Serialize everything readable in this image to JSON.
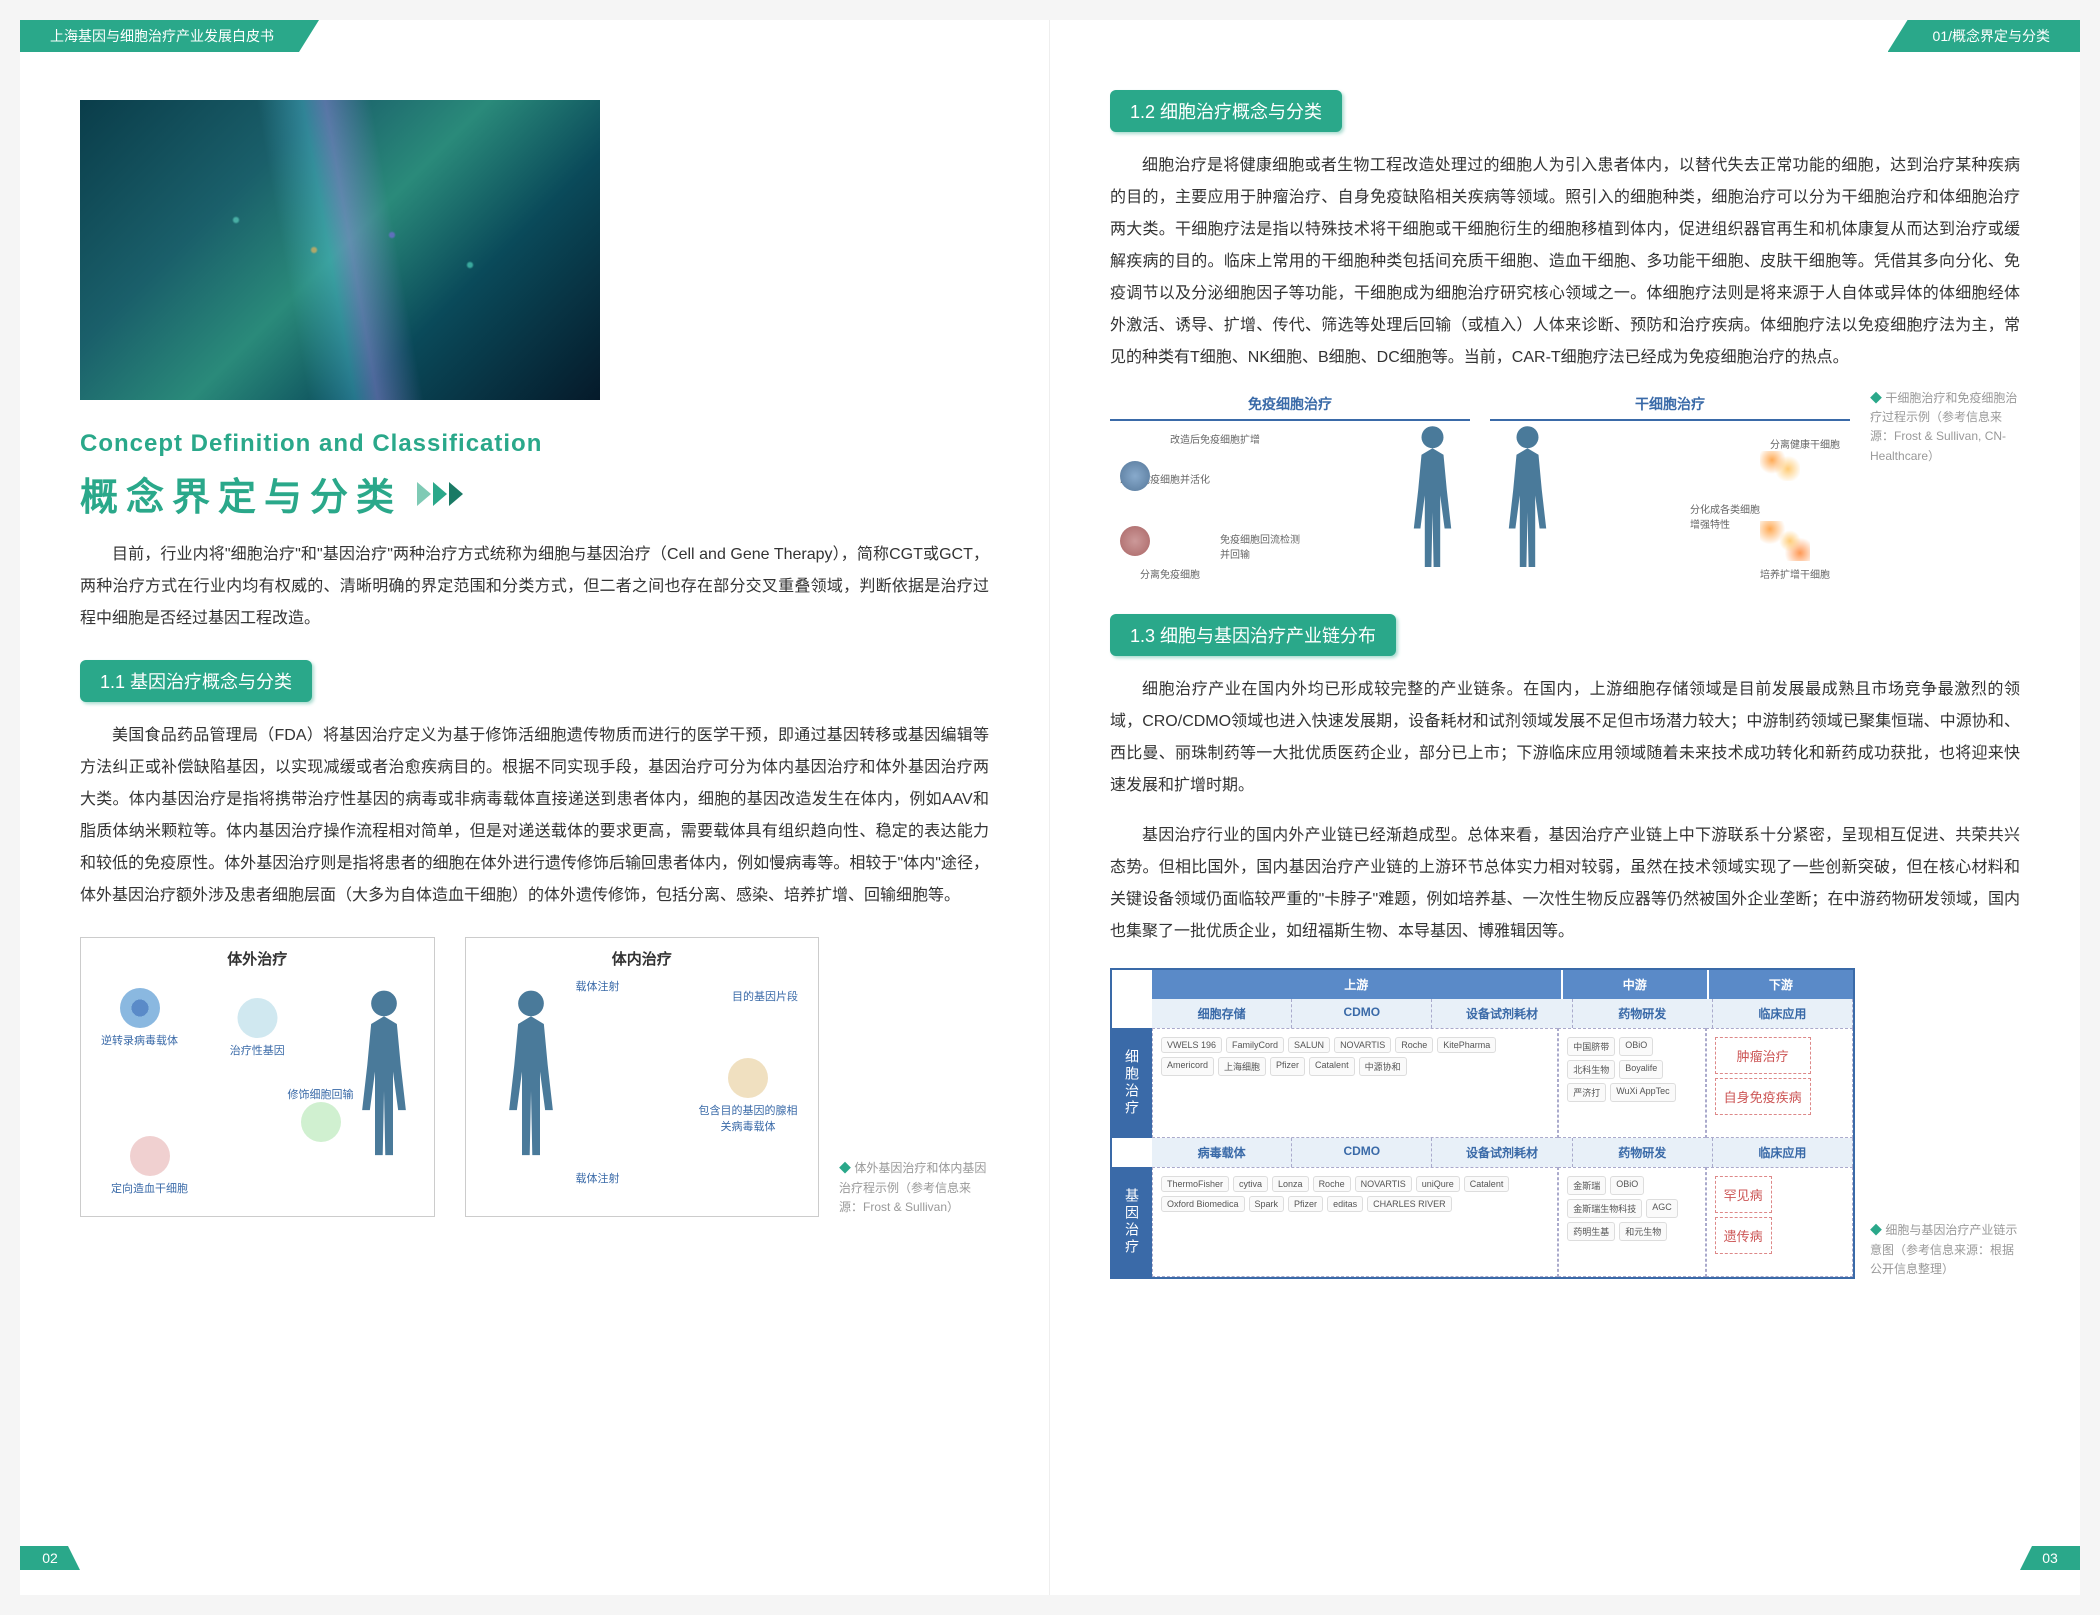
{
  "header": {
    "left_tab": "上海基因与细胞治疗产业发展白皮书",
    "right_tab": "01/概念界定与分类"
  },
  "left_page": {
    "subtitle_en": "Concept Definition and Classification",
    "title_cn": "概念界定与分类",
    "intro": "目前，行业内将\"细胞治疗\"和\"基因治疗\"两种治疗方式统称为细胞与基因治疗（Cell and Gene Therapy），简称CGT或GCT，两种治疗方式在行业内均有权威的、清晰明确的界定范围和分类方式，但二者之间也存在部分交叉重叠领域，判断依据是治疗过程中细胞是否经过基因工程改造。",
    "section_1_1": {
      "heading": "1.1  基因治疗概念与分类",
      "para": "美国食品药品管理局（FDA）将基因治疗定义为基于修饰活细胞遗传物质而进行的医学干预，即通过基因转移或基因编辑等方法纠正或补偿缺陷基因，以实现减缓或者治愈疾病目的。根据不同实现手段，基因治疗可分为体内基因治疗和体外基因治疗两大类。体内基因治疗是指将携带治疗性基因的病毒或非病毒载体直接递送到患者体内，细胞的基因改造发生在体内，例如AAV和脂质体纳米颗粒等。体内基因治疗操作流程相对简单，但是对递送载体的要求更高，需要载体具有组织趋向性、稳定的表达能力和较低的免疫原性。体外基因治疗则是指将患者的细胞在体外进行遗传修饰后输回患者体内，例如慢病毒等。相较于\"体内\"途径，体外基因治疗额外涉及患者细胞层面（大多为自体造血干细胞）的体外遗传修饰，包括分离、感染、培养扩增、回输细胞等。",
      "diagram_left_label": "体外治疗",
      "diagram_right_label": "体内治疗",
      "nodes": {
        "virus": "逆转录病毒载体",
        "gene": "治疗性基因",
        "target": "定向造血干细胞",
        "modify": "修饰细胞回输",
        "inject1": "载体注射",
        "inject2": "载体注射",
        "fragment": "目的基因片段",
        "adeno": "包含目的基因的腺相关病毒载体"
      },
      "caption": "体外基因治疗和体内基因治疗程示例（参考信息来源：Frost & Sullivan）"
    },
    "page_num": "02"
  },
  "right_page": {
    "section_1_2": {
      "heading": "1.2  细胞治疗概念与分类",
      "para": "细胞治疗是将健康细胞或者生物工程改造处理过的细胞人为引入患者体内，以替代失去正常功能的细胞，达到治疗某种疾病的目的，主要应用于肿瘤治疗、自身免疫缺陷相关疾病等领域。照引入的细胞种类，细胞治疗可以分为干细胞治疗和体细胞治疗两大类。干细胞疗法是指以特殊技术将干细胞或干细胞衍生的细胞移植到体内，促进组织器官再生和机体康复从而达到治疗或缓解疾病的目的。临床上常用的干细胞种类包括间充质干细胞、造血干细胞、多功能干细胞、皮肤干细胞等。凭借其多向分化、免疫调节以及分泌细胞因子等功能，干细胞成为细胞治疗研究核心领域之一。体细胞疗法则是将来源于人自体或异体的体细胞经体外激活、诱导、扩增、传代、筛选等处理后回输（或植入）人体来诊断、预防和治疗疾病。体细胞疗法以免疫细胞疗法为主，常见的种类有T细胞、NK细胞、B细胞、DC细胞等。当前，CAR-T细胞疗法已经成为免疫细胞治疗的热点。",
      "diagram_left_title": "免疫细胞治疗",
      "diagram_right_title": "干细胞治疗",
      "labels": {
        "modify_immune": "改造后免疫细胞扩增",
        "activate": "改造免疫细胞并活化",
        "reinfuse": "分离免疫细胞",
        "detect": "免疫细胞回流检测并回输",
        "separate": "分离健康干细胞",
        "culture": "分化成各类细胞增强特性",
        "expand": "培养扩增干细胞"
      },
      "caption": "干细胞治疗和免疫细胞治疗过程示例（参考信息来源：Frost & Sullivan, CN-Healthcare）"
    },
    "section_1_3": {
      "heading": "1.3  细胞与基因治疗产业链分布",
      "para1": "细胞治疗产业在国内外均已形成较完整的产业链条。在国内，上游细胞存储领域是目前发展最成熟且市场竞争最激烈的领域，CRO/CDMO领域也进入快速发展期，设备耗材和试剂领域发展不足但市场潜力较大；中游制药领域已聚集恒瑞、中源协和、西比曼、丽珠制药等一大批优质医药企业，部分已上市；下游临床应用领域随着未来技术成功转化和新药成功获批，也将迎来快速发展和扩增时期。",
      "para2": "基因治疗行业的国内外产业链已经渐趋成型。总体来看，基因治疗产业链上中下游联系十分紧密，呈现相互促进、共荣共兴态势。但相比国外，国内基因治疗产业链的上游环节总体实力相对较弱，虽然在技术领域实现了一些创新突破，但在核心材料和关键设备领域仍面临较严重的\"卡脖子\"难题，例如培养基、一次性生物反应器等仍然被国外企业垄断；在中游药物研发领域，国内也集聚了一批优质企业，如纽福斯生物、本导基因、博雅辑因等。",
      "chain": {
        "stages": [
          "上游",
          "中游",
          "下游"
        ],
        "cell_row_label": "细胞治疗",
        "gene_row_label": "基因治疗",
        "cell_cols": [
          "细胞存储",
          "CDMO",
          "设备试剂耗材",
          "药物研发",
          "临床应用"
        ],
        "gene_cols": [
          "病毒载体",
          "CDMO",
          "设备试剂耗材",
          "药物研发",
          "临床应用"
        ],
        "cell_logos": [
          "VWELS 196",
          "FamilyCord",
          "SALUN",
          "NOVARTIS",
          "Roche",
          "KitePharma",
          "Americord",
          "上海细胞",
          "Pfizer",
          "Catalent",
          "中源协和",
          "中国脐带",
          "OBiO",
          "北科生物",
          "Boyalife",
          "严济打",
          "WuXi AppTec"
        ],
        "gene_logos": [
          "ThermoFisher",
          "cytiva",
          "Lonza",
          "Roche",
          "NOVARTIS",
          "uniQure",
          "Catalent",
          "Oxford Biomedica",
          "Spark",
          "Pfizer",
          "editas",
          "CHARLES RIVER",
          "金斯瑞",
          "OBiO",
          "金斯瑞生物科技",
          "AGC",
          "药明生基",
          "和元生物"
        ],
        "cell_apps": [
          "肿瘤治疗",
          "自身免疫疾病"
        ],
        "gene_apps": [
          "罕见病",
          "遗传病"
        ]
      },
      "caption": "细胞与基因治疗产业链示意图（参考信息来源：根据公开信息整理）"
    },
    "page_num": "03"
  },
  "colors": {
    "accent": "#2aa88a",
    "chain_blue": "#3a6aa8"
  }
}
